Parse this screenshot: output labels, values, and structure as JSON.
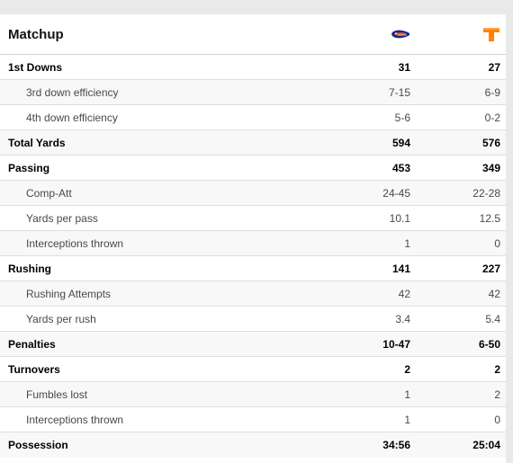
{
  "header": {
    "title": "Matchup",
    "team_a_logo": "florida-gator-logo",
    "team_b_logo": "tennessee-power-t-logo",
    "team_a_color": "#0a2a8a",
    "team_a_accent": "#f15a24",
    "team_b_color": "#ff8200"
  },
  "rows": [
    {
      "label": "1st Downs",
      "a": "31",
      "b": "27",
      "kind": "main"
    },
    {
      "label": "3rd down efficiency",
      "a": "7-15",
      "b": "6-9",
      "kind": "sub"
    },
    {
      "label": "4th down efficiency",
      "a": "5-6",
      "b": "0-2",
      "kind": "sub"
    },
    {
      "label": "Total Yards",
      "a": "594",
      "b": "576",
      "kind": "main"
    },
    {
      "label": "Passing",
      "a": "453",
      "b": "349",
      "kind": "main"
    },
    {
      "label": "Comp-Att",
      "a": "24-45",
      "b": "22-28",
      "kind": "sub"
    },
    {
      "label": "Yards per pass",
      "a": "10.1",
      "b": "12.5",
      "kind": "sub"
    },
    {
      "label": "Interceptions thrown",
      "a": "1",
      "b": "0",
      "kind": "sub"
    },
    {
      "label": "Rushing",
      "a": "141",
      "b": "227",
      "kind": "main"
    },
    {
      "label": "Rushing Attempts",
      "a": "42",
      "b": "42",
      "kind": "sub"
    },
    {
      "label": "Yards per rush",
      "a": "3.4",
      "b": "5.4",
      "kind": "sub"
    },
    {
      "label": "Penalties",
      "a": "10-47",
      "b": "6-50",
      "kind": "main"
    },
    {
      "label": "Turnovers",
      "a": "2",
      "b": "2",
      "kind": "main"
    },
    {
      "label": "Fumbles lost",
      "a": "1",
      "b": "2",
      "kind": "sub"
    },
    {
      "label": "Interceptions thrown",
      "a": "1",
      "b": "0",
      "kind": "sub"
    },
    {
      "label": "Possession",
      "a": "34:56",
      "b": "25:04",
      "kind": "main"
    }
  ]
}
